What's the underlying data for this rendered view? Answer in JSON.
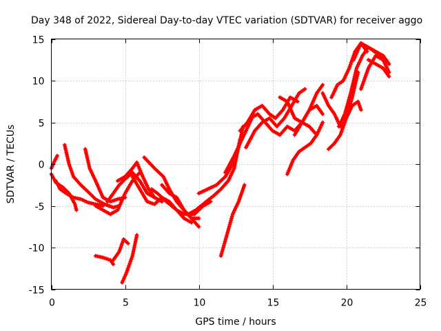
{
  "chart_data": {
    "type": "scatter",
    "title": "Day 348 of 2022, Sidereal Day-to-day VTEC variation (SDTVAR) for receiver aggo",
    "xlabel": "GPS time / hours",
    "ylabel": "SDTVAR / TECUs",
    "xlim": [
      0,
      25
    ],
    "ylim": [
      -15,
      15
    ],
    "xticks": [
      "0",
      "5",
      "10",
      "15",
      "20",
      "25"
    ],
    "yticks": [
      "-15",
      "-10",
      "-5",
      "0",
      "5",
      "10",
      "15"
    ],
    "grid": true,
    "marker": "plus",
    "color": "#ff0000",
    "series": [
      {
        "x": [
          0.0,
          0.3,
          0.8,
          1.2,
          1.6,
          1.7
        ],
        "y": [
          -1.2,
          -2.2,
          -2.8,
          -3.5,
          -4.8,
          -5.5
        ]
      },
      {
        "x": [
          0.0,
          0.2,
          0.4
        ],
        "y": [
          -0.5,
          0.3,
          1.0
        ]
      },
      {
        "x": [
          0.3,
          0.6,
          1.0,
          1.5,
          2.0,
          2.5,
          3.0,
          3.5
        ],
        "y": [
          -2.0,
          -3.0,
          -3.5,
          -4.0,
          -4.2,
          -4.6,
          -4.8,
          -5.0
        ]
      },
      {
        "x": [
          0.9,
          1.2,
          1.5,
          2.0,
          2.6,
          3.0,
          3.6,
          4.2,
          4.6
        ],
        "y": [
          2.3,
          0.0,
          -1.5,
          -2.5,
          -3.5,
          -4.2,
          -4.8,
          -5.2,
          -5.0
        ]
      },
      {
        "x": [
          2.3,
          2.6,
          3.0,
          3.5,
          4.0,
          4.5,
          5.0
        ],
        "y": [
          1.8,
          -0.5,
          -2.0,
          -4.0,
          -4.5,
          -4.2,
          -4.0
        ]
      },
      {
        "x": [
          3.0,
          3.5,
          4.0,
          4.5,
          5.0,
          5.5,
          6.0
        ],
        "y": [
          -5.0,
          -5.5,
          -6.0,
          -5.5,
          -3.5,
          -2.0,
          -1.0
        ]
      },
      {
        "x": [
          3.8,
          4.2,
          4.6,
          5.0,
          5.5,
          6.0,
          6.5,
          7.0
        ],
        "y": [
          -4.5,
          -3.5,
          -2.5,
          -1.8,
          -1.0,
          -2.0,
          -3.5,
          -4.0
        ]
      },
      {
        "x": [
          4.5,
          5.0,
          5.5,
          5.8,
          6.2,
          6.6,
          7.0,
          7.5
        ],
        "y": [
          -2.0,
          -1.5,
          -0.5,
          0.2,
          -1.5,
          -3.0,
          -4.0,
          -4.5
        ]
      },
      {
        "x": [
          5.5,
          6.0,
          6.5,
          7.0,
          7.5,
          8.0,
          8.5,
          9.0,
          9.5
        ],
        "y": [
          -1.5,
          -3.0,
          -4.5,
          -4.8,
          -4.0,
          -4.5,
          -5.5,
          -6.5,
          -7.0
        ]
      },
      {
        "x": [
          6.3,
          7.0,
          7.6,
          8.0,
          8.5,
          9.0,
          9.5,
          10.0
        ],
        "y": [
          0.8,
          -0.5,
          -1.5,
          -3.0,
          -4.5,
          -5.5,
          -6.5,
          -6.5
        ]
      },
      {
        "x": [
          6.8,
          7.2,
          7.8,
          8.5,
          9.0,
          9.7,
          10.3,
          10.8
        ],
        "y": [
          -3.0,
          -3.5,
          -4.5,
          -5.5,
          -6.0,
          -6.0,
          -5.0,
          -4.5
        ]
      },
      {
        "x": [
          7.5,
          8.0,
          8.5,
          9.0,
          9.5,
          10.0
        ],
        "y": [
          -2.5,
          -3.5,
          -4.0,
          -5.5,
          -6.5,
          -7.5
        ]
      },
      {
        "x": [
          3.0,
          3.5,
          4.0,
          4.2
        ],
        "y": [
          -11.0,
          -11.2,
          -11.5,
          -12.0
        ]
      },
      {
        "x": [
          4.2,
          4.6,
          4.9,
          5.2
        ],
        "y": [
          -11.5,
          -10.5,
          -9.0,
          -9.5
        ]
      },
      {
        "x": [
          4.8,
          5.1,
          5.5,
          5.8
        ],
        "y": [
          -14.2,
          -13.0,
          -11.0,
          -8.5
        ]
      },
      {
        "x": [
          9.3,
          9.8,
          10.5,
          11.0,
          11.5,
          12.0,
          12.4,
          12.8
        ],
        "y": [
          -6.0,
          -5.5,
          -4.5,
          -3.8,
          -3.0,
          -2.0,
          -0.5,
          3.0
        ]
      },
      {
        "x": [
          10.0,
          10.6,
          11.2,
          11.8,
          12.3,
          12.7,
          13.0
        ],
        "y": [
          -3.5,
          -3.0,
          -2.5,
          -1.5,
          0.0,
          2.0,
          4.5
        ]
      },
      {
        "x": [
          11.5,
          11.9,
          12.3,
          12.7,
          13.1
        ],
        "y": [
          -11.0,
          -8.5,
          -6.0,
          -4.5,
          -2.5
        ]
      },
      {
        "x": [
          11.8,
          12.4,
          12.8,
          13.2,
          13.6
        ],
        "y": [
          -1.0,
          1.0,
          2.5,
          4.0,
          5.5
        ]
      },
      {
        "x": [
          12.8,
          13.3,
          13.8,
          14.3,
          14.8,
          15.2,
          15.7,
          16.2,
          16.7
        ],
        "y": [
          4.0,
          5.0,
          6.5,
          7.0,
          6.0,
          5.5,
          6.5,
          8.0,
          7.5
        ]
      },
      {
        "x": [
          13.2,
          13.8,
          14.3,
          14.8,
          15.3,
          15.8,
          16.3,
          16.8,
          17.2
        ],
        "y": [
          2.0,
          4.0,
          5.0,
          5.5,
          4.5,
          5.5,
          7.0,
          8.5,
          9.0
        ]
      },
      {
        "x": [
          13.5,
          14.0,
          14.5,
          15.0,
          15.5,
          16.0,
          16.5,
          17.0,
          17.5,
          18.0
        ],
        "y": [
          5.5,
          6.0,
          5.0,
          4.0,
          3.5,
          4.5,
          4.0,
          5.0,
          4.5,
          3.5
        ]
      },
      {
        "x": [
          15.5,
          16.0,
          16.5,
          17.0,
          17.5,
          18.0,
          18.4
        ],
        "y": [
          8.0,
          7.5,
          5.5,
          5.0,
          6.5,
          8.5,
          9.5
        ]
      },
      {
        "x": [
          16.0,
          16.4,
          16.8,
          17.2,
          17.6,
          18.0,
          18.4
        ],
        "y": [
          -1.2,
          0.5,
          1.5,
          2.0,
          2.5,
          3.5,
          5.0
        ]
      },
      {
        "x": [
          16.5,
          17.0,
          17.5,
          18.0,
          18.4
        ],
        "y": [
          3.5,
          5.0,
          6.5,
          7.0,
          6.0
        ]
      },
      {
        "x": [
          18.4,
          18.8,
          19.2,
          19.6,
          20.0,
          20.4,
          20.8,
          21.0
        ],
        "y": [
          8.5,
          7.0,
          6.0,
          4.5,
          5.5,
          7.0,
          7.5,
          6.5
        ]
      },
      {
        "x": [
          18.8,
          19.2,
          19.6,
          20.0,
          20.4,
          20.8
        ],
        "y": [
          1.8,
          2.5,
          3.5,
          5.5,
          8.0,
          11.0
        ]
      },
      {
        "x": [
          19.0,
          19.4,
          19.8,
          20.2,
          20.6,
          21.0,
          21.4
        ],
        "y": [
          8.0,
          9.5,
          10.0,
          11.5,
          13.5,
          14.5,
          13.5
        ]
      },
      {
        "x": [
          19.5,
          19.9,
          20.3,
          20.7,
          21.1,
          21.5,
          21.9,
          22.3,
          22.7
        ],
        "y": [
          4.5,
          6.0,
          8.5,
          11.5,
          13.0,
          14.0,
          13.5,
          13.0,
          12.5
        ]
      },
      {
        "x": [
          20.5,
          21.0,
          21.5,
          22.0,
          22.5,
          22.9
        ],
        "y": [
          12.5,
          14.5,
          14.0,
          13.5,
          13.0,
          12.0
        ]
      },
      {
        "x": [
          21.0,
          21.5,
          22.0,
          22.5,
          22.9
        ],
        "y": [
          9.0,
          11.5,
          13.0,
          12.5,
          11.0
        ]
      },
      {
        "x": [
          21.5,
          22.0,
          22.5,
          22.9
        ],
        "y": [
          12.5,
          12.0,
          11.5,
          10.5
        ]
      }
    ]
  }
}
